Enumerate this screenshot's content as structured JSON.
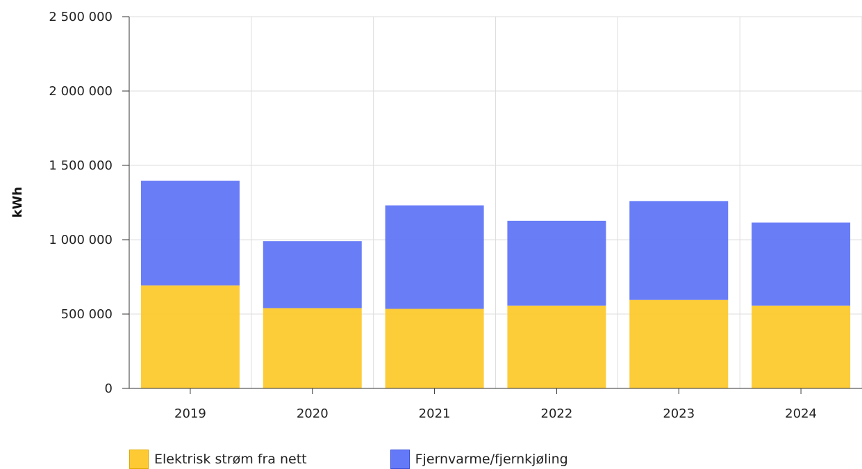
{
  "chart_data": {
    "type": "bar",
    "stacked": true,
    "categories": [
      "2019",
      "2020",
      "2021",
      "2022",
      "2023",
      "2024"
    ],
    "series": [
      {
        "name": "Elektrisk strøm fra nett",
        "values": [
          693000,
          540000,
          535000,
          557000,
          595000,
          557000
        ],
        "color": "#fdca33"
      },
      {
        "name": "Fjernvarme/fjernkjøling",
        "values": [
          704000,
          450000,
          696000,
          570000,
          665000,
          558000
        ],
        "color": "#6479f7"
      }
    ],
    "title": "",
    "xlabel": "",
    "ylabel": "kWh",
    "ylim": [
      0,
      2500000
    ],
    "yticks": [
      0,
      500000,
      1000000,
      1500000,
      2000000,
      2500000
    ],
    "ytick_labels": [
      "0",
      "500 000",
      "1 000 000",
      "1 500 000",
      "2 000 000",
      "2 500 000"
    ],
    "grid": true,
    "legend_position": "bottom"
  },
  "legend": {
    "items": [
      {
        "label": "Elektrisk strøm fra nett",
        "color": "#fdca33",
        "border": "#e0a800"
      },
      {
        "label": "Fjernvarme/fjernkjøling",
        "color": "#6479f7",
        "border": "#3a4fd8"
      }
    ]
  }
}
